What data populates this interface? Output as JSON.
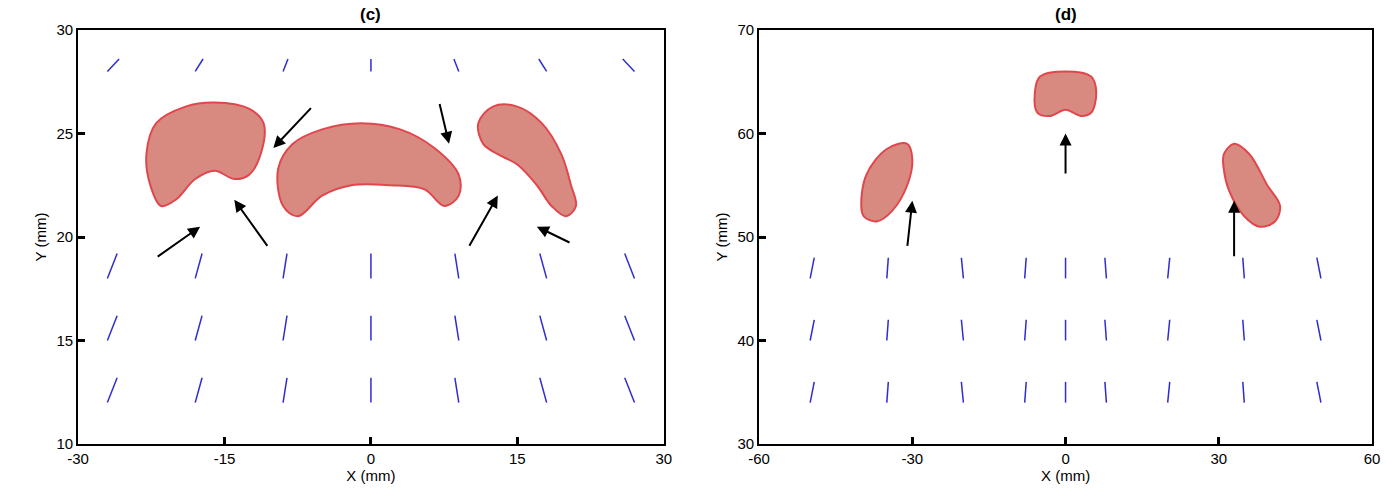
{
  "chart_data": [
    {
      "type": "quiver",
      "title": "(c)",
      "x_label": "X (mm)",
      "y_label": "Y (mm)",
      "xlim": [
        -30,
        30
      ],
      "ylim": [
        10,
        30
      ],
      "xticks": [
        -30,
        -15,
        0,
        15,
        30
      ],
      "yticks": [
        10,
        15,
        20,
        25,
        30
      ],
      "vector_color": "#2e2ed0",
      "vectors": {
        "x": [
          -27,
          -18,
          -9,
          0,
          9,
          18,
          27,
          -27,
          -18,
          -9,
          0,
          9,
          18,
          27,
          -27,
          -18,
          -9,
          0,
          9,
          18,
          27,
          -27,
          -18,
          -9,
          0,
          9,
          18,
          27
        ],
        "y": [
          12,
          12,
          12,
          12,
          12,
          12,
          12,
          15,
          15,
          15,
          15,
          15,
          15,
          15,
          18,
          18,
          18,
          18,
          18,
          18,
          18,
          28,
          28,
          28,
          28,
          28,
          28,
          28
        ],
        "u": [
          1.0,
          0.7,
          0.4,
          0,
          -0.4,
          -0.7,
          -1.0,
          1.0,
          0.7,
          0.4,
          0,
          -0.4,
          -0.7,
          -1.0,
          1.0,
          0.7,
          0.4,
          0,
          -0.4,
          -0.7,
          -1.0,
          1.2,
          0.8,
          0.5,
          0,
          -0.5,
          -0.8,
          -1.2
        ],
        "v": [
          1.2,
          1.2,
          1.2,
          1.2,
          1.2,
          1.2,
          1.2,
          1.2,
          1.2,
          1.2,
          1.2,
          1.2,
          1.2,
          1.2,
          1.2,
          1.2,
          1.2,
          1.2,
          1.2,
          1.2,
          1.2,
          0.6,
          0.6,
          0.6,
          0.6,
          0.6,
          0.6,
          0.6
        ]
      },
      "droplet_color": "#d98a80",
      "droplet_edge": "#e0474c",
      "droplets": [
        {
          "x": [
            -23,
            -22,
            -19,
            -16,
            -12.5,
            -11,
            -11.3,
            -12.5,
            -14,
            -16,
            -18,
            -20,
            -21.5,
            -22.6
          ],
          "y": [
            24,
            25.5,
            26.3,
            26.5,
            26.2,
            25.5,
            24,
            23,
            22.8,
            23.2,
            22.8,
            21.8,
            21.5,
            22.5
          ]
        },
        {
          "x": [
            -9.5,
            -8,
            -5,
            -1,
            3,
            6.5,
            9,
            9,
            7.5,
            5.5,
            2,
            -2,
            -5,
            -7.5,
            -9
          ],
          "y": [
            23.3,
            24.5,
            25.2,
            25.5,
            25.2,
            24.3,
            23,
            22,
            21.5,
            22.3,
            22.5,
            22.5,
            22,
            21,
            21.5
          ]
        },
        {
          "x": [
            11,
            12.5,
            15,
            17.5,
            19.5,
            20.5,
            21,
            20,
            18.5,
            17,
            15,
            13,
            11.5
          ],
          "y": [
            25.5,
            26.3,
            26.3,
            25.5,
            24,
            22.5,
            21.5,
            21,
            21.5,
            22.5,
            23.5,
            24,
            24.5
          ]
        }
      ],
      "arrow_color": "#000000",
      "arrows": [
        {
          "x0": -6,
          "y0": 26.3,
          "x1": -10,
          "y1": 24.3
        },
        {
          "x0": -10.5,
          "y0": 19.5,
          "x1": -14,
          "y1": 21.8
        },
        {
          "x0": -22,
          "y0": 19,
          "x1": -17.5,
          "y1": 20.5
        },
        {
          "x0": 7,
          "y0": 26.5,
          "x1": 8,
          "y1": 24.5
        },
        {
          "x0": 10,
          "y0": 19.5,
          "x1": 13,
          "y1": 22
        },
        {
          "x0": 20.5,
          "y0": 19.7,
          "x1": 17,
          "y1": 20.5
        }
      ]
    },
    {
      "type": "quiver",
      "title": "(d)",
      "x_label": "X (mm)",
      "y_label": "Y (mm)",
      "xlim": [
        -60,
        60
      ],
      "ylim": [
        30,
        70
      ],
      "xticks": [
        -60,
        -30,
        0,
        30,
        60
      ],
      "yticks": [
        30,
        40,
        50,
        60,
        70
      ],
      "vector_color": "#2e2ed0",
      "vectors": {
        "x": [
          -50,
          -35,
          -20,
          -8,
          0,
          8,
          20,
          35,
          50,
          -50,
          -35,
          -20,
          -8,
          0,
          8,
          20,
          35,
          50,
          -50,
          -35,
          -20,
          -8,
          0,
          8,
          20,
          35,
          50
        ],
        "y": [
          34,
          34,
          34,
          34,
          34,
          34,
          34,
          34,
          34,
          40,
          40,
          40,
          40,
          40,
          40,
          40,
          40,
          40,
          46,
          46,
          46,
          46,
          46,
          46,
          46,
          46,
          46
        ],
        "u": [
          0.8,
          0.3,
          -0.4,
          0.3,
          0,
          -0.3,
          0.4,
          -0.3,
          -0.8,
          0.8,
          0.3,
          -0.4,
          0.3,
          0,
          -0.3,
          0.4,
          -0.3,
          -0.8,
          0.8,
          0.3,
          -0.4,
          0.3,
          0,
          -0.3,
          0.4,
          -0.3,
          -0.8
        ],
        "v": [
          2,
          2,
          2,
          2,
          2,
          2,
          2,
          2,
          2,
          2,
          2,
          2,
          2,
          2,
          2,
          2,
          2,
          2,
          2,
          2,
          2,
          2,
          2,
          2,
          2,
          2,
          2
        ]
      },
      "droplet_color": "#d98a80",
      "droplet_edge": "#e0474c",
      "droplets": [
        {
          "x": [
            -6,
            -5,
            0,
            5,
            6,
            5,
            3,
            0,
            -3,
            -5.5
          ],
          "y": [
            64,
            65.5,
            66,
            65.5,
            64,
            62,
            61.7,
            62.3,
            61.7,
            62
          ]
        },
        {
          "x": [
            -40,
            -39,
            -35,
            -31,
            -30,
            -31,
            -34,
            -37,
            -39.5
          ],
          "y": [
            53,
            56,
            58.5,
            59,
            57.5,
            55,
            52.5,
            51.5,
            52
          ]
        },
        {
          "x": [
            31,
            33,
            36,
            39.5,
            42,
            41,
            38,
            35,
            32,
            31
          ],
          "y": [
            58,
            59,
            58,
            55,
            53,
            51.5,
            51,
            52,
            54.5,
            56.5
          ]
        }
      ],
      "arrow_color": "#000000",
      "arrows": [
        {
          "x0": 0,
          "y0": 56,
          "x1": 0,
          "y1": 60
        },
        {
          "x0": -31,
          "y0": 49,
          "x1": -30,
          "y1": 53.5
        },
        {
          "x0": 33,
          "y0": 48,
          "x1": 33,
          "y1": 53.5
        }
      ]
    }
  ]
}
